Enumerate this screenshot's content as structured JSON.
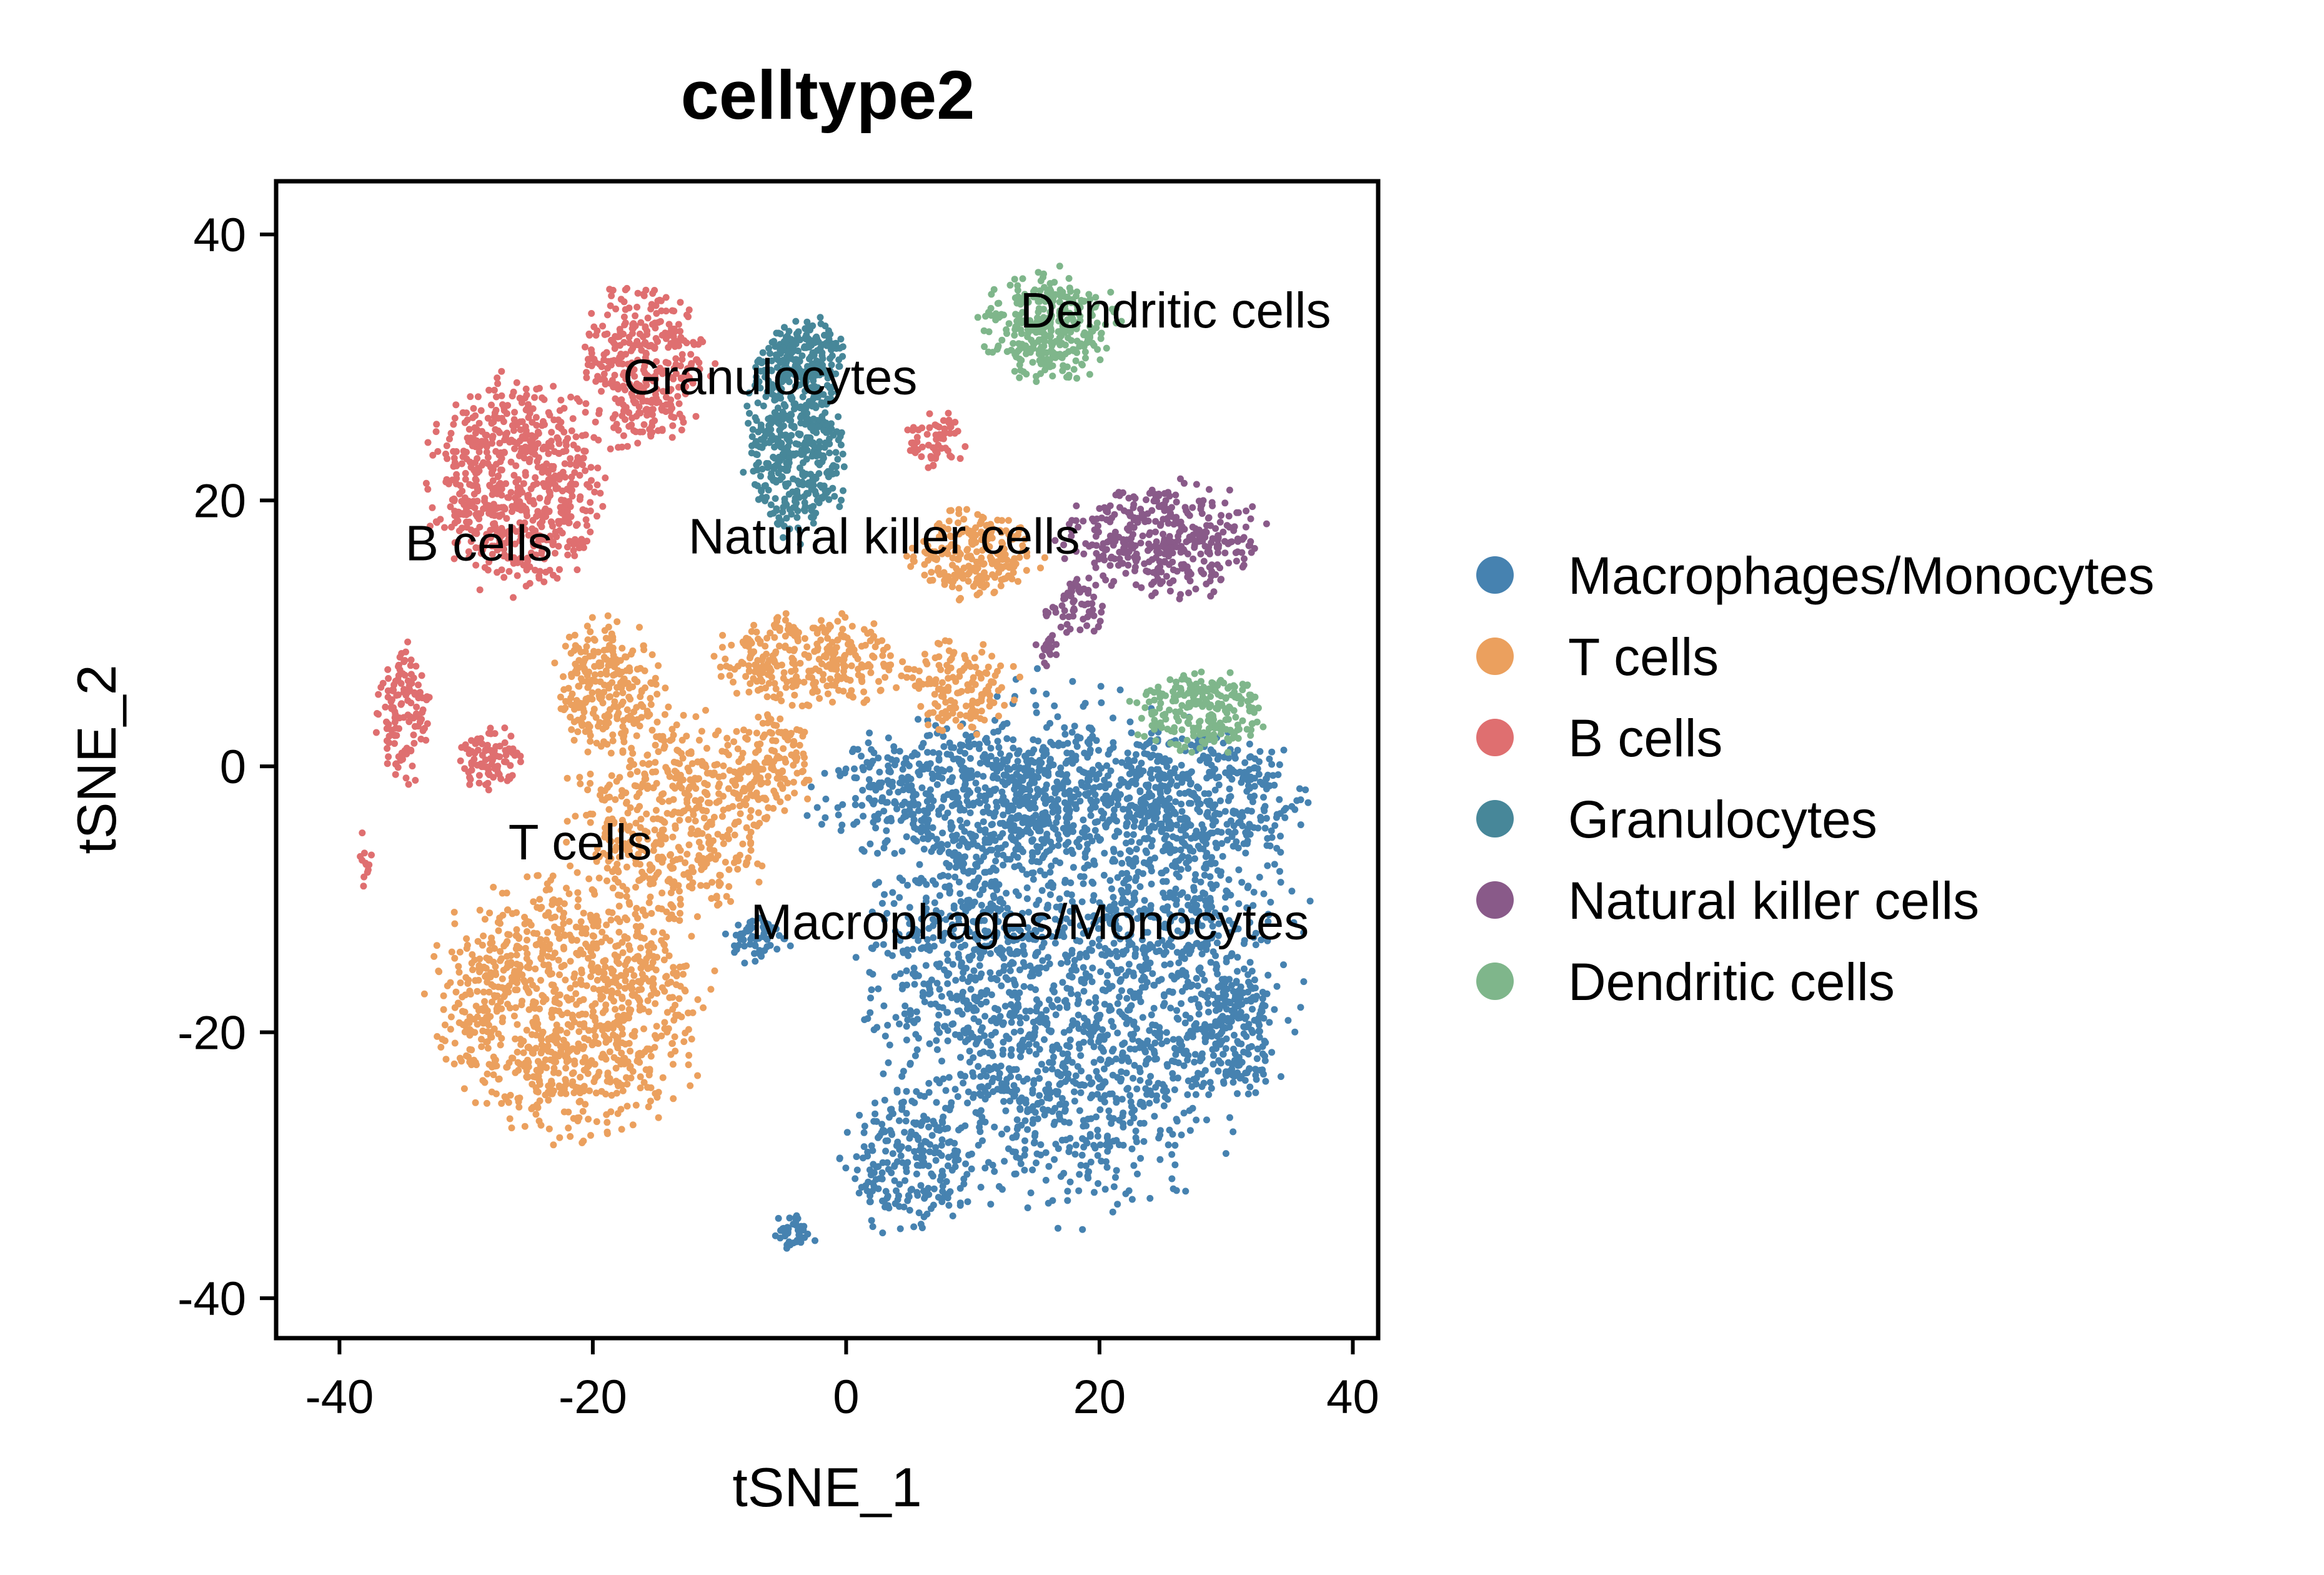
{
  "chart_data": {
    "type": "scatter",
    "title": "celltype2",
    "xlabel": "tSNE_1",
    "ylabel": "tSNE_2",
    "xlim": [
      -45,
      42
    ],
    "ylim": [
      -43,
      44
    ],
    "xticks": [
      "-40",
      "-20",
      "0",
      "20",
      "40"
    ],
    "yticks": [
      "40",
      "20",
      "0",
      "-20",
      "-40"
    ],
    "grid": false,
    "legend_position": "right",
    "series": [
      {
        "name": "Macrophages/Monocytes",
        "color": "#4682B0",
        "label": "Macrophages/Monocytes",
        "label_at": [
          14.5,
          -13
        ],
        "regions": [
          {
            "cx": 18,
            "cy": -14,
            "rx": 19,
            "ry": 22,
            "n": 2300
          },
          {
            "cx": 10,
            "cy": -2,
            "rx": 14,
            "ry": 6,
            "n": 500
          },
          {
            "cx": 28,
            "cy": -2,
            "rx": 9,
            "ry": 6,
            "n": 350
          },
          {
            "cx": 31,
            "cy": -20,
            "rx": 3,
            "ry": 6,
            "n": 160
          },
          {
            "cx": 5,
            "cy": -30,
            "rx": 6,
            "ry": 6,
            "n": 220
          },
          {
            "cx": -4,
            "cy": -35,
            "rx": 1.8,
            "ry": 1.6,
            "n": 40
          },
          {
            "cx": -7,
            "cy": -13,
            "rx": 3,
            "ry": 2,
            "n": 60
          }
        ]
      },
      {
        "name": "T cells",
        "color": "#EBA05E",
        "label": "T cells",
        "label_at": [
          -21,
          -7
        ],
        "regions": [
          {
            "cx": -22,
            "cy": -18,
            "rx": 12,
            "ry": 11,
            "n": 1000
          },
          {
            "cx": -14,
            "cy": -4,
            "rx": 9,
            "ry": 9,
            "n": 500
          },
          {
            "cx": -19,
            "cy": 6,
            "rx": 5,
            "ry": 6,
            "n": 250
          },
          {
            "cx": -3,
            "cy": 8,
            "rx": 9,
            "ry": 4,
            "n": 300
          },
          {
            "cx": 10,
            "cy": 16,
            "rx": 6,
            "ry": 4,
            "n": 220
          },
          {
            "cx": 9,
            "cy": 6,
            "rx": 5,
            "ry": 4,
            "n": 150
          },
          {
            "cx": -6,
            "cy": 0,
            "rx": 4,
            "ry": 5,
            "n": 150
          }
        ]
      },
      {
        "name": "B cells",
        "color": "#DF6F70",
        "label": "B cells",
        "label_at": [
          -29,
          15.5
        ],
        "regions": [
          {
            "cx": -26,
            "cy": 21,
            "rx": 8,
            "ry": 9,
            "n": 650
          },
          {
            "cx": -16,
            "cy": 30,
            "rx": 6,
            "ry": 7,
            "n": 350
          },
          {
            "cx": -35,
            "cy": 4,
            "rx": 2.5,
            "ry": 6,
            "n": 130
          },
          {
            "cx": -28,
            "cy": 0.5,
            "rx": 3,
            "ry": 3,
            "n": 90
          },
          {
            "cx": -38,
            "cy": -7,
            "rx": 0.6,
            "ry": 2.5,
            "n": 12
          },
          {
            "cx": 7,
            "cy": 24.5,
            "rx": 3,
            "ry": 2.5,
            "n": 60
          }
        ]
      },
      {
        "name": "Granulocytes",
        "color": "#478799",
        "label": "Granulocytes",
        "label_at": [
          -6,
          28
        ],
        "regions": [
          {
            "cx": -4,
            "cy": 25,
            "rx": 4.5,
            "ry": 9,
            "n": 500
          },
          {
            "cx": -3,
            "cy": 31,
            "rx": 3.5,
            "ry": 3.5,
            "n": 120
          }
        ]
      },
      {
        "name": "Natural killer cells",
        "color": "#895A89",
        "label": "Natural killer cells",
        "label_at": [
          3,
          16
        ],
        "regions": [
          {
            "cx": 25,
            "cy": 17,
            "rx": 9,
            "ry": 5,
            "n": 380
          },
          {
            "cx": 18,
            "cy": 12,
            "rx": 3,
            "ry": 2.5,
            "n": 60
          },
          {
            "cx": 16,
            "cy": 9,
            "rx": 1.2,
            "ry": 1.5,
            "n": 20
          }
        ]
      },
      {
        "name": "Dendritic cells",
        "color": "#7FB68B",
        "label": "Dendritic cells",
        "label_at": [
          26,
          33
        ],
        "regions": [
          {
            "cx": 16,
            "cy": 33,
            "rx": 6,
            "ry": 5,
            "n": 320
          },
          {
            "cx": 28,
            "cy": 4,
            "rx": 6,
            "ry": 3.5,
            "n": 230
          }
        ]
      }
    ]
  }
}
